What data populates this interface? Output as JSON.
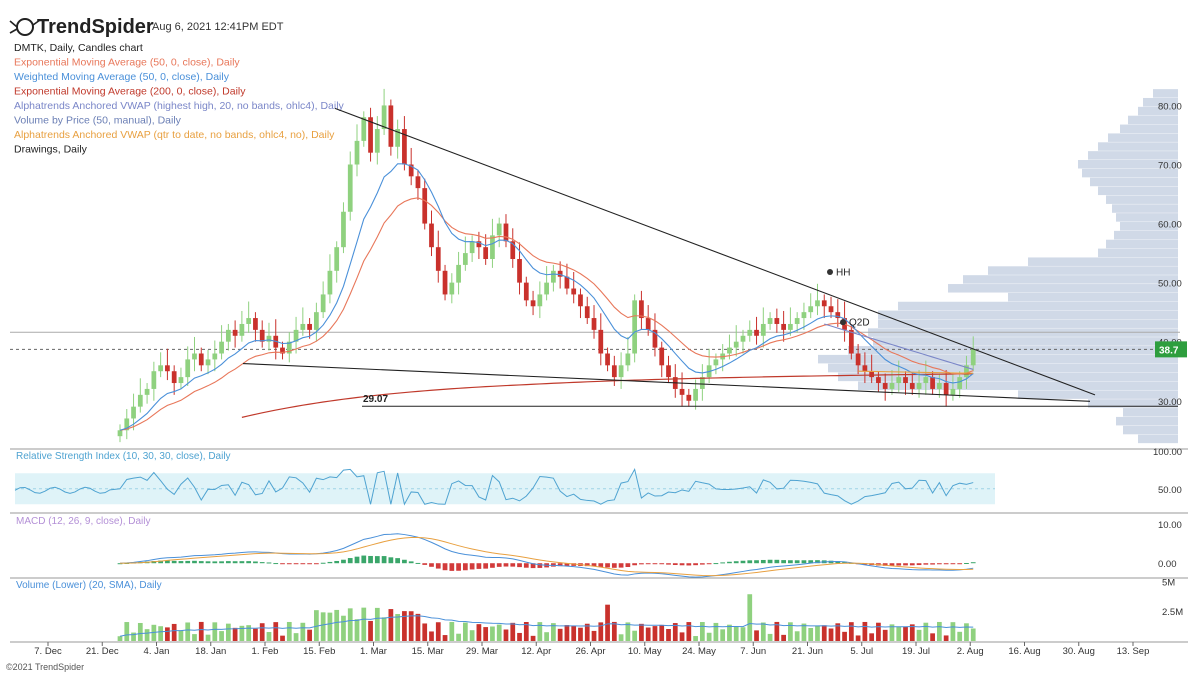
{
  "header": {
    "brand": "TrendSpider",
    "timestamp": "Aug 6, 2021 12:41PM EDT"
  },
  "legend": [
    {
      "text": "DMTK, Daily, Candles chart",
      "color": "#222222"
    },
    {
      "text": "Exponential Moving Average (50, 0, close), Daily",
      "color": "#e8775a"
    },
    {
      "text": "Weighted Moving Average (50, 0, close), Daily",
      "color": "#4a90d9"
    },
    {
      "text": "Exponential Moving Average (200, 0, close), Daily",
      "color": "#c0392b"
    },
    {
      "text": "Alphatrends Anchored VWAP (highest high, 20, no bands, ohlc4), Daily",
      "color": "#7a86c8"
    },
    {
      "text": "Volume by Price (50, manual), Daily",
      "color": "#6b7fb5"
    },
    {
      "text": "Alphatrends Anchored VWAP (qtr to date, no bands, ohlc4, no), Daily",
      "color": "#e8a040"
    },
    {
      "text": "Drawings, Daily",
      "color": "#222222"
    }
  ],
  "footer": {
    "copyright": "©2021 TrendSpider"
  },
  "colors": {
    "up": "#8fd17f",
    "down": "#c9312c",
    "rsi": "#4fa3d1",
    "rsi_band": "#dff3f8",
    "vbp": "#c8d2e3",
    "price_badge": "#2e9e3e"
  },
  "chart_data": {
    "type": "candlestick",
    "symbol": "DMTK",
    "timeframe": "Daily",
    "x_ticks": [
      "7. Dec",
      "21. Dec",
      "4. Jan",
      "18. Jan",
      "1. Feb",
      "15. Feb",
      "1. Mar",
      "15. Mar",
      "29. Mar",
      "12. Apr",
      "26. Apr",
      "10. May",
      "24. May",
      "7. Jun",
      "21. Jun",
      "5. Jul",
      "19. Jul",
      "2. Aug",
      "16. Aug",
      "30. Aug",
      "13. Sep"
    ],
    "price_axis": {
      "ticks": [
        30,
        40,
        50,
        60,
        70,
        80
      ],
      "ylim": [
        22,
        86
      ]
    },
    "last_price": "38.7",
    "annotations": [
      {
        "text": "HH",
        "price": 51.8
      },
      {
        "text": "Q2D",
        "price": 43.3
      },
      {
        "text": "29.07",
        "price": 29.07
      }
    ],
    "trendlines": [
      {
        "from": [
          0,
          79.5
        ],
        "to": [
          1,
          31
        ]
      },
      {
        "from": [
          0,
          36.3
        ],
        "to": [
          1,
          29.9
        ]
      }
    ],
    "candles_close": [
      25,
      27,
      29,
      31,
      32,
      35,
      36,
      35,
      33,
      34,
      37,
      38,
      36,
      37,
      38,
      40,
      42,
      41,
      43,
      44,
      42,
      40,
      41,
      39,
      38,
      40,
      42,
      43,
      42,
      45,
      48,
      52,
      56,
      62,
      70,
      74,
      78,
      72,
      76,
      80,
      73,
      76,
      70,
      68,
      66,
      60,
      56,
      52,
      48,
      50,
      53,
      55,
      57,
      56,
      54,
      58,
      60,
      57,
      54,
      50,
      47,
      46,
      48,
      50,
      52,
      51,
      49,
      48,
      46,
      44,
      42,
      38,
      36,
      34,
      36,
      38,
      47,
      44,
      42,
      39,
      36,
      34,
      32,
      31,
      30,
      32,
      34,
      36,
      37,
      38,
      39,
      40,
      41,
      42,
      41,
      43,
      44,
      43,
      42,
      43,
      44,
      45,
      46,
      47,
      46,
      45,
      44,
      42,
      38,
      36,
      35,
      34,
      33,
      32,
      33,
      34,
      33,
      32,
      33,
      34,
      32,
      33,
      31,
      32,
      34,
      36,
      38.7
    ],
    "rsi": {
      "title": "Relative Strength Index (10, 30, 30, close), Daily",
      "ticks": [
        50,
        100
      ],
      "ylim": [
        20,
        100
      ],
      "band": [
        30,
        70
      ]
    },
    "macd": {
      "title": "MACD (12, 26, 9, close), Daily",
      "ticks": [
        0,
        10
      ],
      "ylim": [
        -3.5,
        12.5
      ]
    },
    "volume": {
      "title": "Volume (Lower) (20, SMA), Daily",
      "ticks": [
        "2.5M",
        "5M"
      ],
      "ylim": [
        0,
        5.2
      ]
    }
  }
}
